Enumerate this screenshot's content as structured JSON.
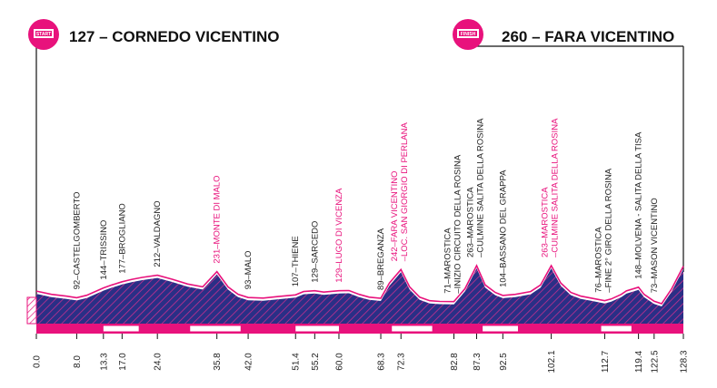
{
  "start": {
    "badge": "START",
    "title": "127 – CORNEDO VICENTINO"
  },
  "finish": {
    "badge": "FINISH",
    "title": "260 – FARA VICENTINO"
  },
  "colors": {
    "accent": "#e8127c",
    "profile_fill": "#2a2f86",
    "hatch_line": "#c4308f",
    "text": "#222222"
  },
  "chart_data": {
    "type": "area",
    "xlabel": "",
    "ylabel": "",
    "xlim": [
      0,
      128.3
    ],
    "km_ticks": [
      0.0,
      8.0,
      13.3,
      17.0,
      24.0,
      35.8,
      42.0,
      51.4,
      55.2,
      60.0,
      68.3,
      72.3,
      82.8,
      87.3,
      92.5,
      102.1,
      112.7,
      119.4,
      122.5,
      128.3
    ],
    "km_tick_labels": [
      "0.0",
      "8.0",
      "13.3",
      "17.0",
      "24.0",
      "35.8",
      "42.0",
      "51.4",
      "55.2",
      "60.0",
      "68.3",
      "72.3",
      "82.8",
      "87.3",
      "92.5",
      "102.1",
      "112.7",
      "119.4",
      "122.5",
      "128.3"
    ],
    "profile": {
      "km": [
        0,
        3,
        6,
        8,
        10,
        13.3,
        15,
        17,
        19,
        21,
        24,
        27,
        30,
        33,
        35.8,
        38,
        40,
        42,
        45,
        48,
        51.4,
        53,
        55.2,
        57,
        60,
        62,
        64,
        66,
        68.3,
        70,
        72.3,
        74,
        76,
        78,
        80,
        82.8,
        85,
        87.3,
        89,
        91,
        92.5,
        95,
        98,
        100,
        102.1,
        104,
        106,
        108,
        110,
        112.7,
        114,
        116,
        117,
        119.4,
        120.5,
        122.5,
        124,
        126,
        128.3
      ],
      "altitude": [
        127,
        110,
        100,
        92,
        105,
        144,
        160,
        177,
        190,
        200,
        212,
        190,
        165,
        150,
        231,
        150,
        110,
        93,
        90,
        98,
        107,
        125,
        129,
        122,
        129,
        130,
        110,
        95,
        89,
        170,
        242,
        150,
        95,
        76,
        72,
        71,
        140,
        263,
        160,
        120,
        104,
        110,
        125,
        160,
        263,
        170,
        120,
        100,
        90,
        76,
        85,
        110,
        128,
        148,
        110,
        73,
        60,
        140,
        260
      ]
    },
    "waypoints": [
      {
        "label": "92–CASTELGOMBERTO",
        "km": 8.0,
        "kom": false
      },
      {
        "label": "144–TRISSINO",
        "km": 13.3,
        "kom": false
      },
      {
        "label": "177–BROGLIANO",
        "km": 17.0,
        "kom": false
      },
      {
        "label": "212–VALDAGNO",
        "km": 24.0,
        "kom": false
      },
      {
        "label": "231–MONTE DI MALO",
        "km": 35.8,
        "kom": true
      },
      {
        "label": "93–MALO",
        "km": 42.0,
        "kom": false
      },
      {
        "label": "107–THIENE",
        "km": 51.4,
        "kom": false
      },
      {
        "label": "129–SARCEDO",
        "km": 55.2,
        "kom": false
      },
      {
        "label": "129–LUGO DI VICENZA",
        "km": 60.0,
        "kom": true
      },
      {
        "label": "89–BREGANZA",
        "km": 68.3,
        "kom": false
      },
      {
        "label": "242–FARA VICENTINO",
        "label2": "–LOC. SAN GIORGIO DI PERLANA",
        "km": 72.3,
        "kom": true
      },
      {
        "label": "71–MAROSTICA",
        "label2": "–INIZIO CIRCUITO DELLA ROSINA",
        "km": 82.8,
        "kom": false
      },
      {
        "label": "263–MAROSTICA",
        "label2": "–CULMINE SALITA DELLA ROSINA",
        "km": 87.3,
        "kom": false
      },
      {
        "label": "104–BASSANO DEL GRAPPA",
        "km": 92.5,
        "kom": false
      },
      {
        "label": "263–MAROSTICA",
        "label2": "–CULMINE SALITA DELLA ROSINA",
        "km": 102.1,
        "kom": true
      },
      {
        "label": "76–MAROSTICA",
        "label2": "–FINE 2° GIRO DELLA ROSINA",
        "km": 112.7,
        "kom": false
      },
      {
        "label": "148–MOLVENA - SALITA DELLA TISA",
        "km": 119.4,
        "kom": false
      },
      {
        "label": "73–MASON VICENTINO",
        "km": 122.5,
        "kom": false
      }
    ]
  }
}
